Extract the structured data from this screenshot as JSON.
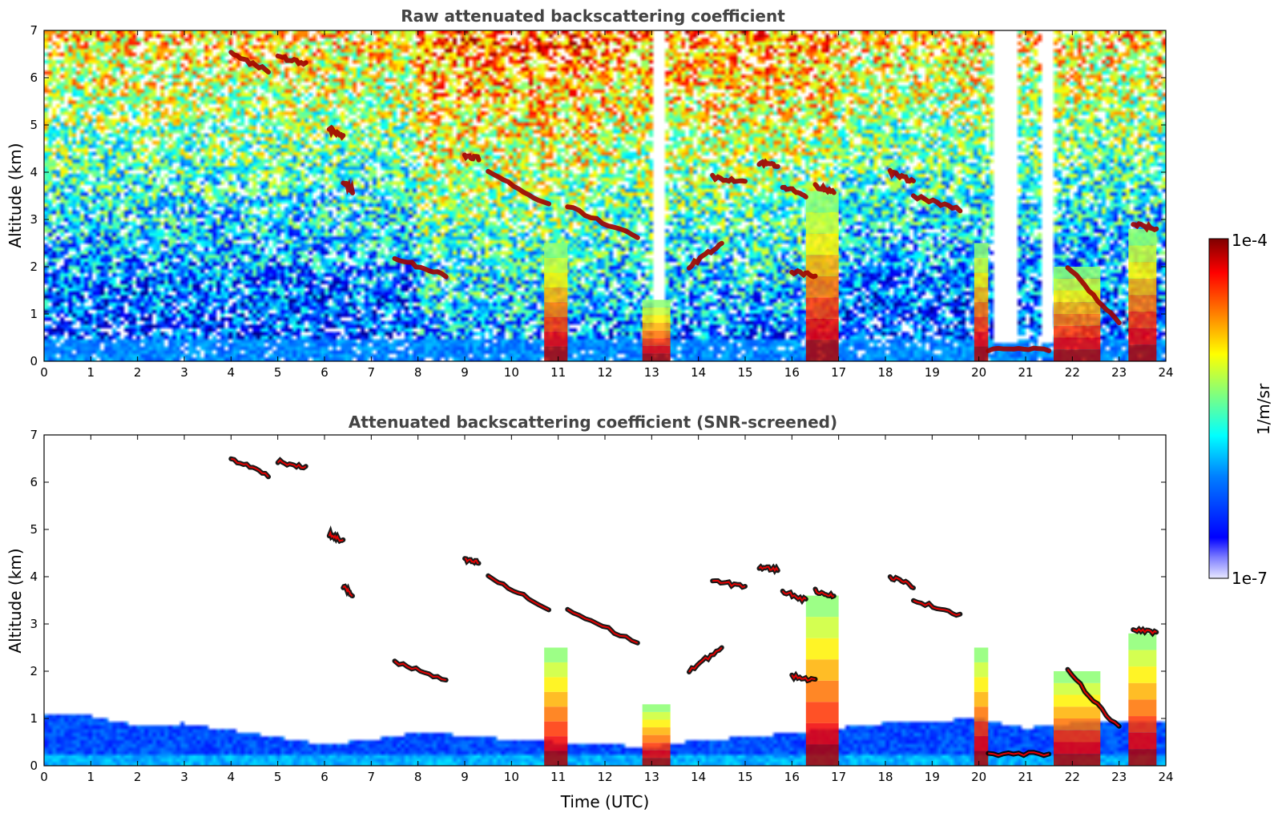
{
  "colors": {
    "jet": [
      "#00007f",
      "#0000ff",
      "#007fff",
      "#00ffff",
      "#7fff7f",
      "#ffff00",
      "#ff7f00",
      "#ff0000",
      "#7f0000"
    ],
    "cloud_top": "#000000",
    "background": "#ffffff"
  },
  "chart_data": [
    {
      "type": "heatmap",
      "title": "Raw attenuated backscattering coefficient",
      "xlabel": "",
      "ylabel": "Altitude (km)",
      "xlim": [
        0,
        24
      ],
      "ylim": [
        0,
        7
      ],
      "xticks": [
        "0",
        "1",
        "2",
        "3",
        "4",
        "5",
        "6",
        "7",
        "8",
        "9",
        "10",
        "11",
        "12",
        "13",
        "14",
        "15",
        "16",
        "17",
        "18",
        "19",
        "20",
        "21",
        "22",
        "23",
        "24"
      ],
      "yticks": [
        "0",
        "1",
        "2",
        "3",
        "4",
        "5",
        "6",
        "7"
      ],
      "colorbar": {
        "label": "1/m/sr",
        "min": "1e-7",
        "max": "1e-4",
        "scale": "log"
      },
      "screened": false,
      "features": {
        "cloud_layers": [
          {
            "t0": 4.0,
            "t1": 4.8,
            "z0": 6.5,
            "z1": 6.15
          },
          {
            "t0": 5.0,
            "t1": 5.6,
            "z0": 6.45,
            "z1": 6.3
          },
          {
            "t0": 6.1,
            "t1": 6.4,
            "z0": 4.9,
            "z1": 4.75
          },
          {
            "t0": 6.4,
            "t1": 6.6,
            "z0": 3.8,
            "z1": 3.6
          },
          {
            "t0": 7.5,
            "t1": 8.6,
            "z0": 2.2,
            "z1": 1.8
          },
          {
            "t0": 9.0,
            "t1": 9.3,
            "z0": 4.35,
            "z1": 4.3
          },
          {
            "t0": 9.5,
            "t1": 10.8,
            "z0": 4.0,
            "z1": 3.3
          },
          {
            "t0": 11.2,
            "t1": 12.7,
            "z0": 3.3,
            "z1": 2.6
          },
          {
            "t0": 13.8,
            "t1": 14.5,
            "z0": 2.0,
            "z1": 2.5
          },
          {
            "t0": 14.3,
            "t1": 15.0,
            "z0": 3.9,
            "z1": 3.8
          },
          {
            "t0": 15.3,
            "t1": 15.7,
            "z0": 4.2,
            "z1": 4.15
          },
          {
            "t0": 15.8,
            "t1": 16.3,
            "z0": 3.7,
            "z1": 3.5
          },
          {
            "t0": 16.5,
            "t1": 16.9,
            "z0": 3.7,
            "z1": 3.6
          },
          {
            "t0": 16.0,
            "t1": 16.5,
            "z0": 1.9,
            "z1": 1.8
          },
          {
            "t0": 18.1,
            "t1": 18.6,
            "z0": 4.0,
            "z1": 3.8
          },
          {
            "t0": 18.6,
            "t1": 19.6,
            "z0": 3.5,
            "z1": 3.2
          },
          {
            "t0": 20.2,
            "t1": 21.5,
            "z0": 0.25,
            "z1": 0.25
          },
          {
            "t0": 21.9,
            "t1": 23.0,
            "z0": 2.0,
            "z1": 0.8
          },
          {
            "t0": 23.3,
            "t1": 23.8,
            "z0": 2.9,
            "z1": 2.8
          }
        ],
        "columns": [
          {
            "t0": 10.7,
            "t1": 11.2,
            "ztop": 2.5
          },
          {
            "t0": 12.8,
            "t1": 13.4,
            "ztop": 1.3
          },
          {
            "t0": 16.3,
            "t1": 17.0,
            "ztop": 3.6
          },
          {
            "t0": 19.9,
            "t1": 20.2,
            "ztop": 2.5
          },
          {
            "t0": 21.6,
            "t1": 22.6,
            "ztop": 2.0
          },
          {
            "t0": 23.2,
            "t1": 23.8,
            "ztop": 2.8
          }
        ],
        "gaps": [
          {
            "t0": 13.0,
            "t1": 13.3
          },
          {
            "t0": 20.3,
            "t1": 20.8
          },
          {
            "t0": 21.3,
            "t1": 21.6
          }
        ]
      }
    },
    {
      "type": "heatmap",
      "title": "Attenuated backscattering coefficient (SNR-screened)",
      "xlabel": "Time (UTC)",
      "ylabel": "Altitude (km)",
      "xlim": [
        0,
        24
      ],
      "ylim": [
        0,
        7
      ],
      "xticks": [
        "0",
        "1",
        "2",
        "3",
        "4",
        "5",
        "6",
        "7",
        "8",
        "9",
        "10",
        "11",
        "12",
        "13",
        "14",
        "15",
        "16",
        "17",
        "18",
        "19",
        "20",
        "21",
        "22",
        "23",
        "24"
      ],
      "yticks": [
        "0",
        "1",
        "2",
        "3",
        "4",
        "5",
        "6",
        "7"
      ],
      "colorbar": {
        "label": "1/m/sr",
        "min": "1e-7",
        "max": "1e-4",
        "scale": "log"
      },
      "screened": true,
      "boundary_layer_top_km": [
        [
          0,
          1.1
        ],
        [
          1,
          1.05
        ],
        [
          2,
          0.85
        ],
        [
          3,
          0.9
        ],
        [
          4,
          0.75
        ],
        [
          5,
          0.6
        ],
        [
          6,
          0.45
        ],
        [
          7,
          0.55
        ],
        [
          8,
          0.7
        ],
        [
          9,
          0.65
        ],
        [
          10,
          0.55
        ],
        [
          11,
          0.5
        ],
        [
          12,
          0.45
        ],
        [
          13,
          0.4
        ],
        [
          14,
          0.55
        ],
        [
          15,
          0.6
        ],
        [
          16,
          0.7
        ],
        [
          17,
          0.8
        ],
        [
          18,
          0.9
        ],
        [
          19,
          0.95
        ],
        [
          20,
          1.0
        ],
        [
          21,
          0.8
        ],
        [
          22,
          0.9
        ],
        [
          23,
          0.9
        ],
        [
          23.8,
          0.95
        ]
      ]
    }
  ]
}
